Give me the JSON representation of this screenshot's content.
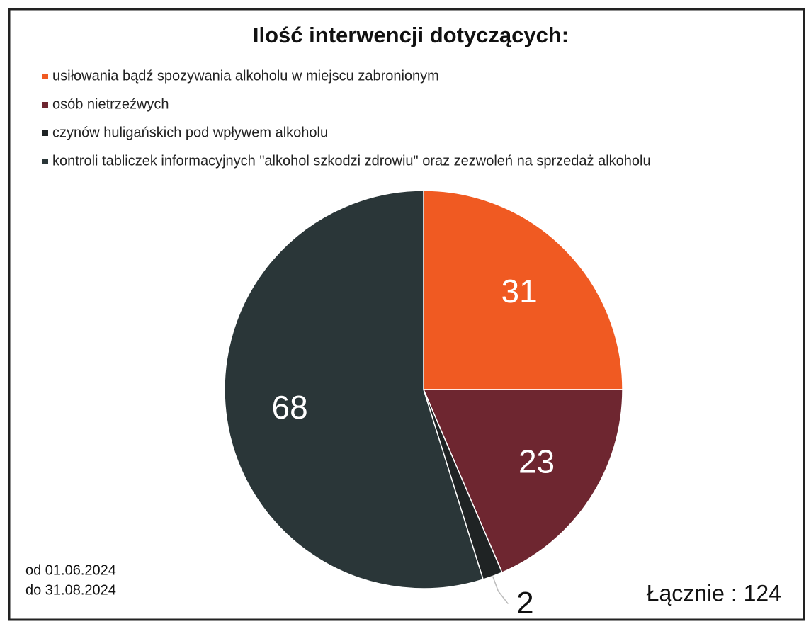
{
  "chart_data": {
    "type": "pie",
    "title": "Ilość interwencji dotyczących:",
    "categories": [
      "usiłowania bądź spozywania alkoholu w miejscu zabronionym",
      "osób nietrzeźwych",
      "czynów huligańskich pod wpływem alkoholu",
      "kontroli tabliczek informacyjnych \"alkohol szkodzi zdrowiu\" oraz zezwoleń na sprzedaż alkoholu"
    ],
    "values": [
      31,
      23,
      2,
      68
    ],
    "colors": [
      "#f05a22",
      "#6e2630",
      "#1f2324",
      "#2a3638"
    ],
    "annotations": [
      "od 01.06.2024",
      "do 31.08.2024",
      "Łącznie : 124"
    ]
  }
}
